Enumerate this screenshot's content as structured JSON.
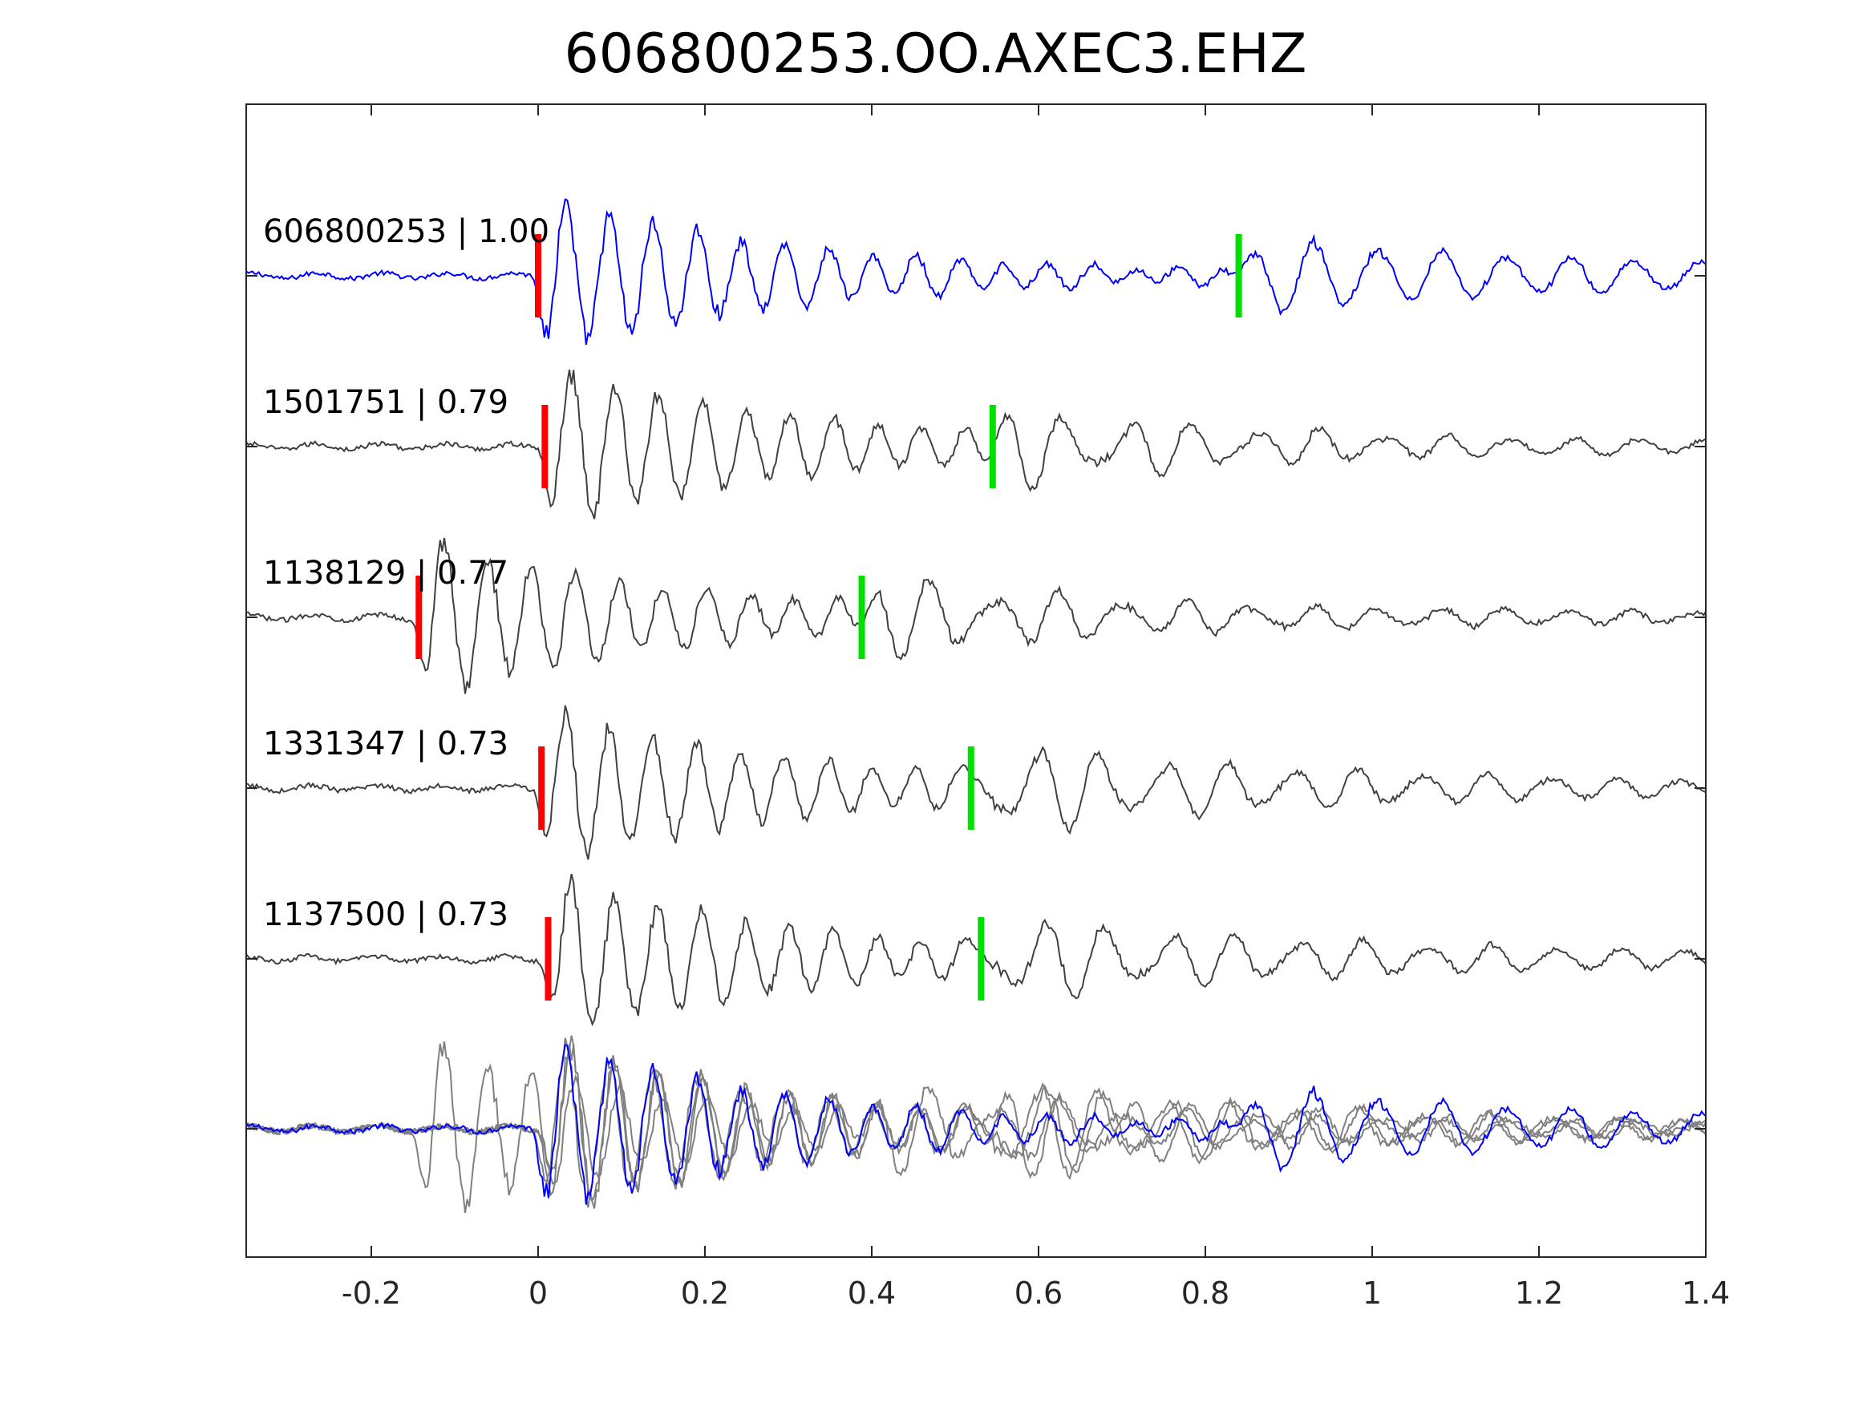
{
  "chart_data": {
    "type": "line",
    "title": "606800253.OO.AXEC3.EHZ",
    "xlabel": "",
    "ylabel": "",
    "xlim": [
      -0.35,
      1.4
    ],
    "x_ticks": [
      "-0.2",
      "0",
      "0.2",
      "0.4",
      "0.6",
      "0.8",
      "1",
      "1.2",
      "1.4"
    ],
    "x_tick_values": [
      -0.2,
      0,
      0.2,
      0.4,
      0.6,
      0.8,
      1.0,
      1.2,
      1.4
    ],
    "grid": false,
    "series": [
      {
        "name": "606800253",
        "label": "606800253 | 1.00",
        "correlation": 1.0,
        "color": "#0000ff",
        "p_pick": 0.0,
        "s_pick": 0.84
      },
      {
        "name": "1501751",
        "label": "1501751 | 0.79",
        "correlation": 0.79,
        "color": "#404040",
        "p_pick": 0.008,
        "s_pick": 0.545
      },
      {
        "name": "1138129",
        "label": "1138129 | 0.77",
        "correlation": 0.77,
        "color": "#404040",
        "p_pick": -0.143,
        "s_pick": 0.388
      },
      {
        "name": "1331347",
        "label": "1331347 | 0.73",
        "correlation": 0.73,
        "color": "#404040",
        "p_pick": 0.004,
        "s_pick": 0.519
      },
      {
        "name": "1137500",
        "label": "1137500 | 0.73",
        "correlation": 0.73,
        "color": "#404040",
        "p_pick": 0.012,
        "s_pick": 0.531
      }
    ],
    "stack": {
      "color_template": "#0000ff",
      "color_others": "#808080"
    },
    "pick_colors": {
      "p": "#ff0000",
      "s": "#00e000"
    }
  }
}
